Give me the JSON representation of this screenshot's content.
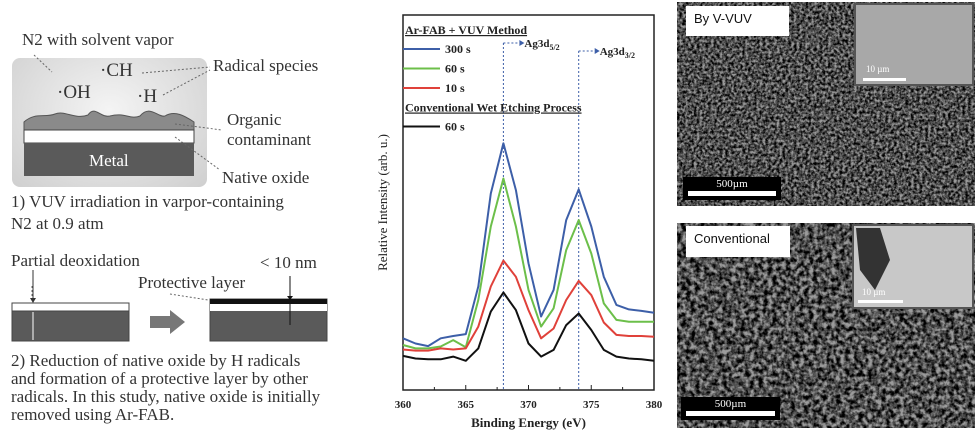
{
  "left_panel": {
    "gas_label": "N2 with solvent vapor",
    "radicals": [
      "·CH",
      "·OH",
      "·H"
    ],
    "radical_species_label": "Radical species",
    "organic_label_1": "Organic",
    "organic_label_2": "contaminant",
    "native_oxide_label": "Native oxide",
    "metal_label": "Metal",
    "step1_line1": "1) VUV irradiation in varpor-containing",
    "step1_line2": "N2 at 0.9 atm",
    "partial_label": "Partial deoxidation",
    "thickness_label": "< 10 nm",
    "protective_label": "Protective layer",
    "step2_lines": [
      "2) Reduction of native oxide by H radicals",
      "and formation of a protective layer by other",
      "radicals. In this study, native oxide is initially",
      "removed using Ar-FAB."
    ]
  },
  "chart_data": {
    "type": "line",
    "xlabel": "Binding Energy (eV)",
    "ylabel": "Relative Intensity (arb. u.)",
    "xlim": [
      360,
      380
    ],
    "ylim": [
      0,
      100
    ],
    "xticks": [
      360,
      365,
      370,
      375,
      380
    ],
    "x": [
      360,
      361,
      362,
      363,
      364,
      365,
      366,
      367,
      368,
      369,
      370,
      371,
      372,
      373,
      374,
      375,
      376,
      377,
      378,
      379,
      380
    ],
    "legend_groups": [
      "Ar-FAB + VUV Method",
      "Conventional Wet Etching Process"
    ],
    "series": [
      {
        "name": "300 s",
        "group": 0,
        "color": "#3d5fa8",
        "values": [
          13.8,
          12.4,
          11.7,
          13.8,
          14.4,
          14.9,
          27.6,
          52.4,
          65.8,
          53.3,
          33.8,
          19.6,
          26.7,
          45.3,
          53.5,
          43.6,
          30.2,
          22.7,
          21.5,
          21.1,
          20.6
        ]
      },
      {
        "name": "60 s",
        "group": 0,
        "color": "#6cbf4a",
        "values": [
          12.0,
          11.1,
          11.1,
          11.6,
          13.3,
          11.4,
          24.0,
          43.6,
          56.4,
          43.6,
          26.7,
          16.9,
          21.8,
          37.3,
          45.3,
          36.4,
          23.1,
          18.7,
          18.2,
          18.2,
          18.2
        ]
      },
      {
        "name": "10 s",
        "group": 0,
        "color": "#e0413a",
        "values": [
          10.8,
          10.5,
          10.5,
          11.1,
          10.8,
          11.1,
          16.9,
          27.6,
          34.5,
          30.2,
          21.3,
          13.8,
          16.4,
          24.0,
          29.1,
          25.3,
          18.0,
          14.7,
          14.4,
          14.4,
          14.2
        ]
      },
      {
        "name": "60 s",
        "group": 1,
        "color": "#111111",
        "values": [
          9.1,
          8.4,
          8.2,
          8.2,
          8.9,
          7.8,
          11.1,
          20.9,
          26.0,
          21.3,
          12.4,
          8.9,
          10.7,
          17.3,
          20.4,
          16.0,
          10.7,
          8.9,
          8.4,
          8.2,
          7.8
        ]
      }
    ],
    "annotations": [
      {
        "x": 368,
        "main": "Ag3d",
        "sub": "5/2"
      },
      {
        "x": 374,
        "main": "Ag3d",
        "sub": "3/2"
      }
    ]
  },
  "sem": {
    "top_label": "By V-VUV",
    "bottom_label": "Conventional",
    "scale_main": "500µm",
    "scale_inset": "10 µm"
  }
}
